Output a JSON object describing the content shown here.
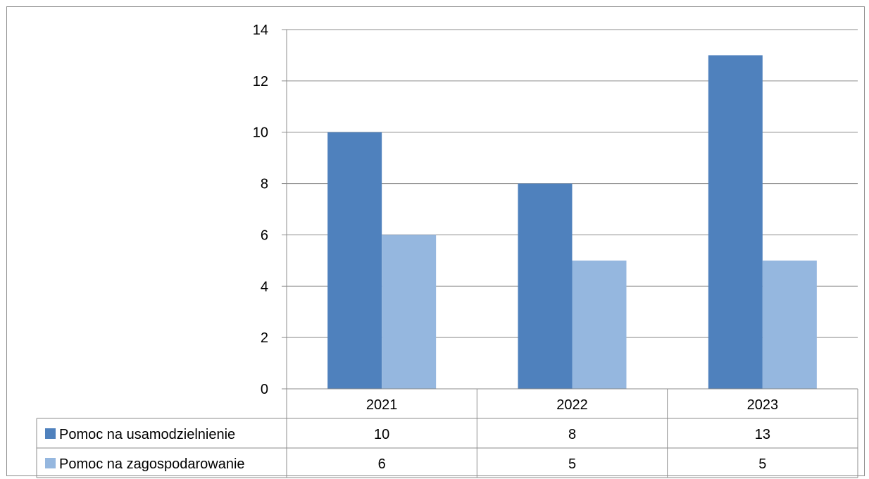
{
  "chart_data": {
    "type": "bar",
    "categories": [
      "2021",
      "2022",
      "2023"
    ],
    "series": [
      {
        "name": "Pomoc na usamodzielnienie",
        "values": [
          10,
          8,
          13
        ],
        "color": "#4f81bd"
      },
      {
        "name": "Pomoc na zagospodarowanie",
        "values": [
          6,
          5,
          5
        ],
        "color": "#95b7df"
      }
    ],
    "ylim": [
      0,
      14
    ],
    "yticks": [
      "0",
      "2",
      "4",
      "6",
      "8",
      "10",
      "12",
      "14"
    ],
    "grid": true,
    "data_table": true,
    "table_values": [
      [
        "10",
        "8",
        "13"
      ],
      [
        "6",
        "5",
        "5"
      ]
    ]
  }
}
